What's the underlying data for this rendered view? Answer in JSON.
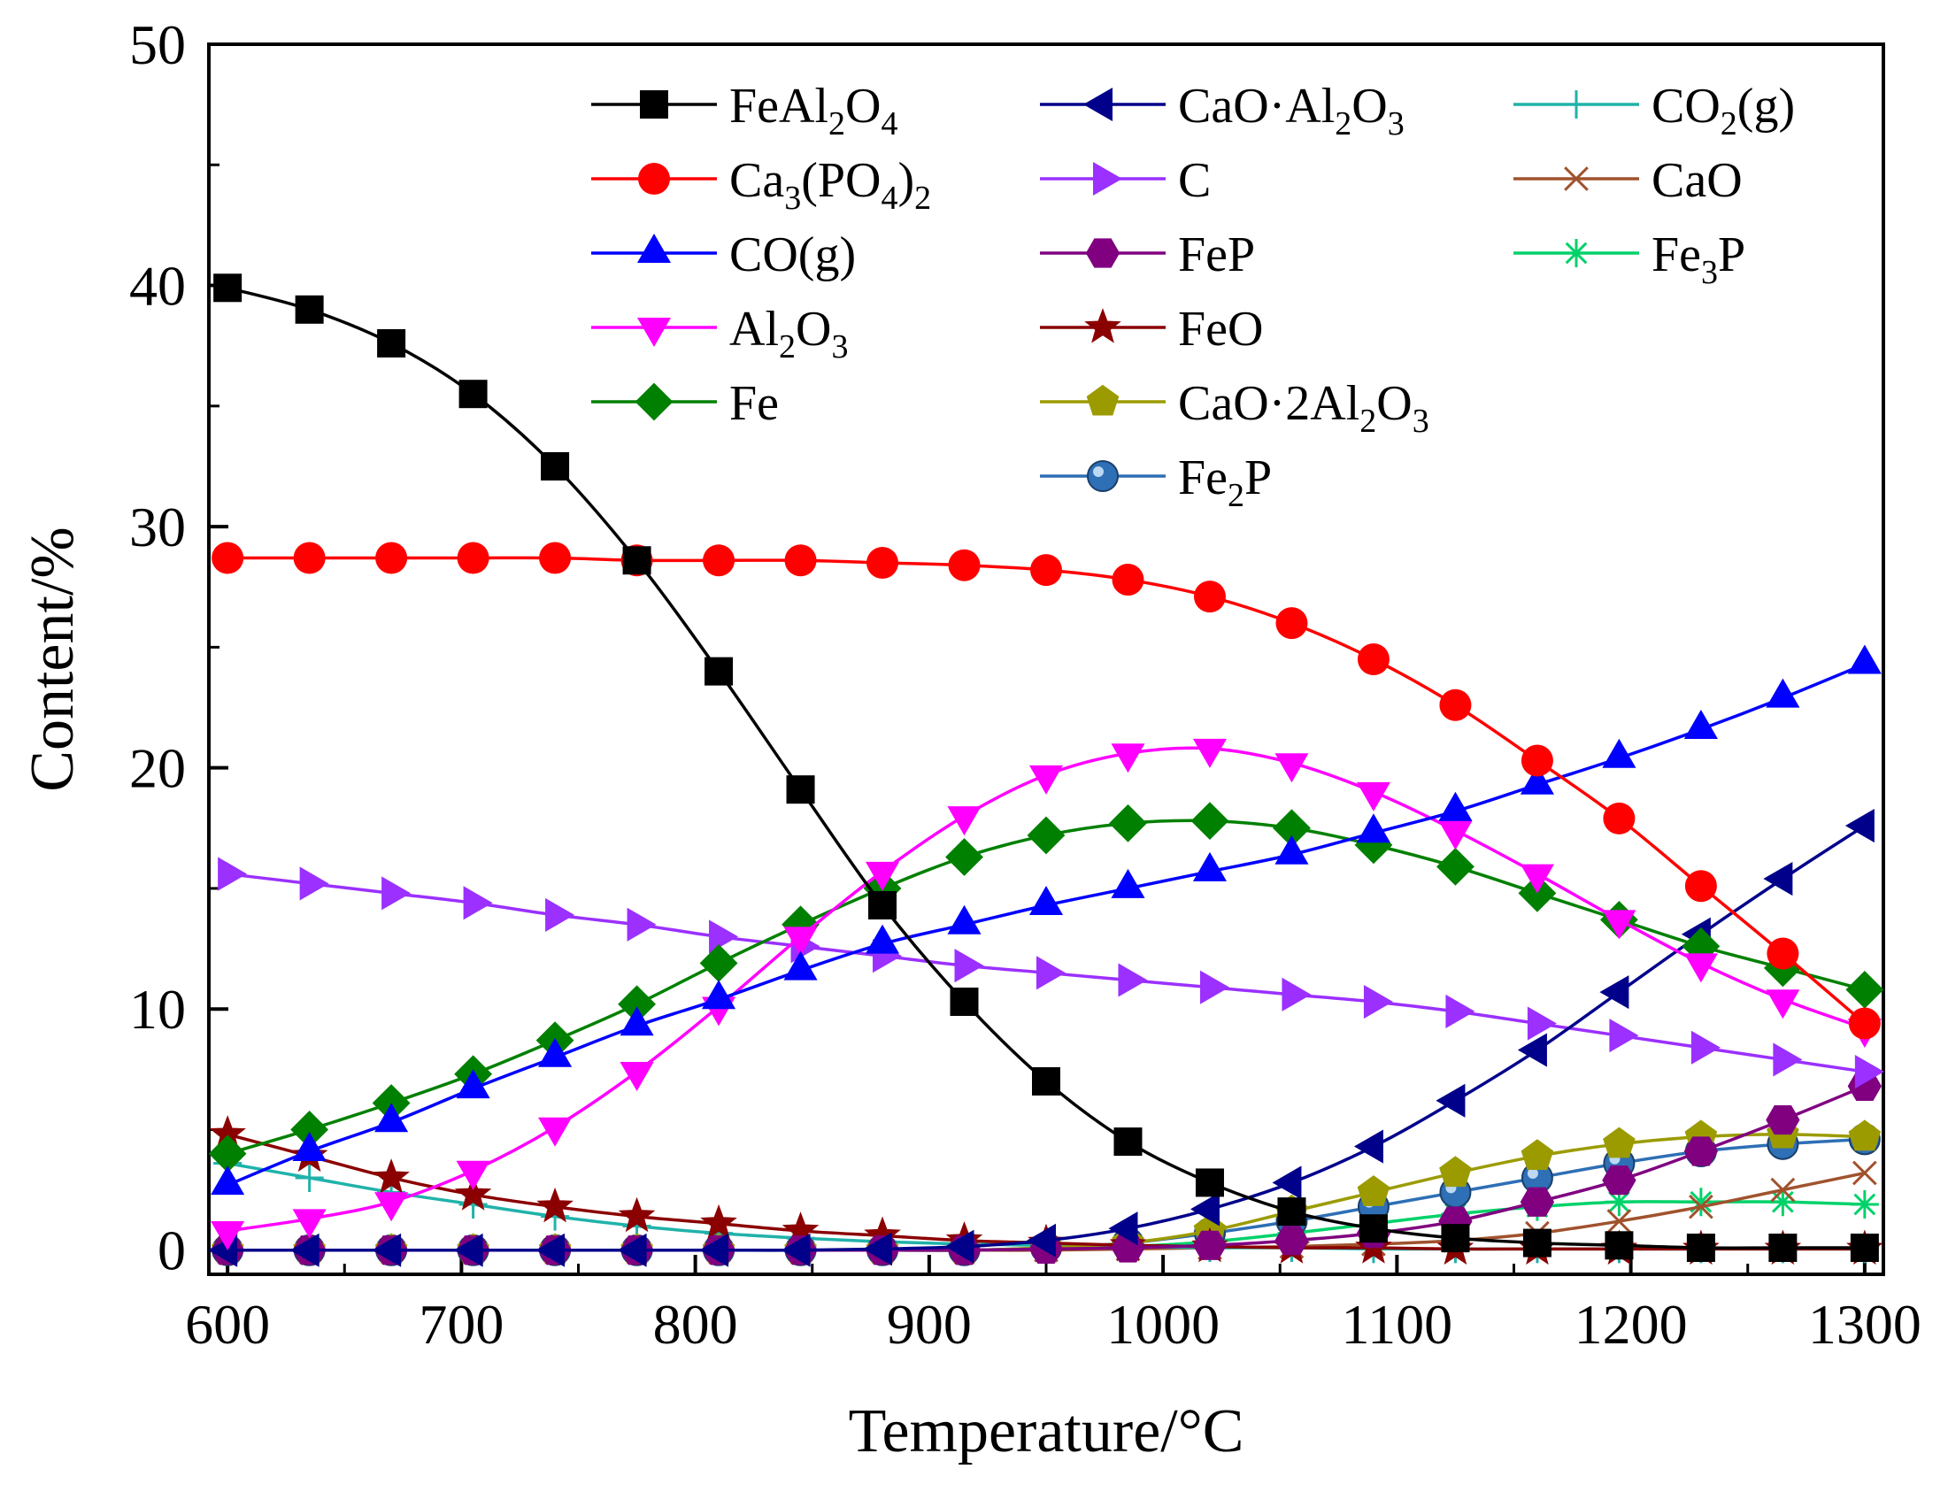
{
  "chart_data": {
    "type": "line",
    "xlabel": "Temperature/°C",
    "ylabel": "Content/%",
    "xlim": [
      592,
      1308
    ],
    "ylim": [
      -1,
      50
    ],
    "xticks": [
      600,
      700,
      800,
      900,
      1000,
      1100,
      1200,
      1300
    ],
    "yticks": [
      0,
      10,
      20,
      30,
      40,
      50
    ],
    "legend_position": "top-right",
    "x": [
      600,
      635,
      670,
      705,
      740,
      775,
      810,
      845,
      880,
      915,
      950,
      985,
      1020,
      1055,
      1090,
      1125,
      1160,
      1195,
      1230,
      1265,
      1300
    ],
    "series": [
      {
        "name": "FeAl2O4",
        "label": [
          [
            "FeAl",
            ""
          ],
          [
            "2",
            "sub"
          ],
          [
            "O",
            ""
          ],
          [
            "4",
            "sub"
          ]
        ],
        "color": "#000000",
        "marker": "square",
        "values": [
          39.9,
          39.0,
          37.6,
          35.5,
          32.5,
          28.6,
          24.0,
          19.1,
          14.3,
          10.3,
          7.0,
          4.5,
          2.8,
          1.6,
          0.9,
          0.5,
          0.3,
          0.2,
          0.1,
          0.1,
          0.1
        ]
      },
      {
        "name": "Ca3(PO4)2",
        "label": [
          [
            "Ca",
            ""
          ],
          [
            "3",
            "sub"
          ],
          [
            "(PO",
            ""
          ],
          [
            "4",
            "sub"
          ],
          [
            ")",
            ""
          ],
          [
            "2",
            "sub"
          ]
        ],
        "color": "#ff0000",
        "marker": "circle",
        "values": [
          28.7,
          28.7,
          28.7,
          28.7,
          28.7,
          28.6,
          28.6,
          28.6,
          28.5,
          28.4,
          28.2,
          27.8,
          27.1,
          26.0,
          24.5,
          22.6,
          20.3,
          17.9,
          15.1,
          12.3,
          9.4
        ]
      },
      {
        "name": "CO(g)",
        "label": [
          [
            "CO(g)",
            ""
          ]
        ],
        "color": "#0000ff",
        "marker": "triangle-up",
        "values": [
          2.7,
          4.1,
          5.3,
          6.7,
          8.0,
          9.3,
          10.4,
          11.6,
          12.7,
          13.5,
          14.3,
          15.0,
          15.7,
          16.4,
          17.3,
          18.2,
          19.3,
          20.4,
          21.6,
          22.9,
          24.3
        ]
      },
      {
        "name": "Al2O3",
        "label": [
          [
            "Al",
            ""
          ],
          [
            "2",
            "sub"
          ],
          [
            "O",
            ""
          ],
          [
            "3",
            "sub"
          ]
        ],
        "color": "#ff00ff",
        "marker": "triangle-down",
        "values": [
          0.8,
          1.3,
          2.0,
          3.3,
          5.1,
          7.4,
          10.1,
          13.0,
          15.7,
          18.0,
          19.7,
          20.6,
          20.8,
          20.2,
          19.0,
          17.4,
          15.6,
          13.7,
          11.9,
          10.4,
          9.2
        ]
      },
      {
        "name": "Fe",
        "label": [
          [
            "Fe",
            ""
          ]
        ],
        "color": "#008000",
        "marker": "diamond",
        "values": [
          4.0,
          5.0,
          6.1,
          7.3,
          8.7,
          10.2,
          11.9,
          13.5,
          15.0,
          16.3,
          17.2,
          17.7,
          17.8,
          17.5,
          16.8,
          15.9,
          14.8,
          13.7,
          12.6,
          11.7,
          10.8
        ]
      },
      {
        "name": "CaO·Al2O3",
        "label": [
          [
            "CaO·Al",
            ""
          ],
          [
            "2",
            "sub"
          ],
          [
            "O",
            ""
          ],
          [
            "3",
            "sub"
          ]
        ],
        "color": "#00008b",
        "marker": "triangle-left",
        "values": [
          0,
          0,
          0,
          0,
          0,
          0,
          0,
          0,
          0.05,
          0.15,
          0.4,
          0.9,
          1.7,
          2.8,
          4.3,
          6.2,
          8.3,
          10.7,
          13.1,
          15.4,
          17.6
        ]
      },
      {
        "name": "C",
        "label": [
          [
            "C",
            ""
          ]
        ],
        "color": "#9b30ff",
        "marker": "triangle-right",
        "values": [
          15.6,
          15.2,
          14.8,
          14.4,
          13.9,
          13.5,
          13.0,
          12.6,
          12.2,
          11.8,
          11.5,
          11.2,
          10.9,
          10.6,
          10.3,
          9.9,
          9.4,
          8.9,
          8.4,
          7.9,
          7.4
        ]
      },
      {
        "name": "FeP",
        "label": [
          [
            "FeP",
            ""
          ]
        ],
        "color": "#800080",
        "marker": "hexagon",
        "values": [
          0,
          0,
          0,
          0,
          0,
          0,
          0,
          0,
          0,
          0,
          0.05,
          0.1,
          0.2,
          0.4,
          0.7,
          1.2,
          2.0,
          2.9,
          4.1,
          5.4,
          6.8
        ]
      },
      {
        "name": "FeO",
        "label": [
          [
            "FeO",
            ""
          ]
        ],
        "color": "#8b0000",
        "marker": "star",
        "values": [
          4.8,
          3.9,
          3.0,
          2.3,
          1.8,
          1.4,
          1.1,
          0.8,
          0.6,
          0.4,
          0.3,
          0.2,
          0.15,
          0.1,
          0.1,
          0.05,
          0.05,
          0.05,
          0.05,
          0.05,
          0.05
        ]
      },
      {
        "name": "CaO·2Al2O3",
        "label": [
          [
            "CaO·2Al",
            ""
          ],
          [
            "2",
            "sub"
          ],
          [
            "O",
            ""
          ],
          [
            "3",
            "sub"
          ]
        ],
        "color": "#9b9b00",
        "marker": "pentagon",
        "values": [
          0,
          0,
          0,
          0,
          0,
          0,
          0,
          0,
          0,
          0,
          0.1,
          0.3,
          0.8,
          1.6,
          2.4,
          3.2,
          3.9,
          4.4,
          4.7,
          4.8,
          4.7
        ]
      },
      {
        "name": "Fe2P",
        "label": [
          [
            "Fe",
            ""
          ],
          [
            "2",
            "sub"
          ],
          [
            "P",
            ""
          ]
        ],
        "color": "#2e6fb5",
        "marker": "sphere",
        "values": [
          0,
          0,
          0,
          0,
          0,
          0,
          0,
          0,
          0,
          0,
          0.1,
          0.3,
          0.7,
          1.2,
          1.8,
          2.4,
          3.0,
          3.6,
          4.1,
          4.4,
          4.6
        ]
      },
      {
        "name": "CO2(g)",
        "label": [
          [
            "CO",
            ""
          ],
          [
            "2",
            "sub"
          ],
          [
            "(g)",
            ""
          ]
        ],
        "color": "#20b2aa",
        "marker": "plus",
        "values": [
          3.6,
          3.0,
          2.4,
          1.9,
          1.4,
          1.0,
          0.7,
          0.5,
          0.35,
          0.25,
          0.2,
          0.15,
          0.1,
          0.1,
          0.05,
          0.05,
          0.05,
          0.05,
          0.05,
          0.05,
          0.05
        ]
      },
      {
        "name": "CaO",
        "label": [
          [
            "CaO",
            ""
          ]
        ],
        "color": "#a0522d",
        "marker": "x",
        "values": [
          0,
          0,
          0,
          0,
          0,
          0,
          0,
          0,
          0,
          0,
          0,
          0.05,
          0.1,
          0.15,
          0.25,
          0.4,
          0.7,
          1.2,
          1.8,
          2.5,
          3.2
        ]
      },
      {
        "name": "Fe3P",
        "label": [
          [
            "Fe",
            ""
          ],
          [
            "3",
            "sub"
          ],
          [
            "P",
            ""
          ]
        ],
        "color": "#00d26a",
        "marker": "asterisk",
        "values": [
          0,
          0,
          0,
          0,
          0,
          0,
          0,
          0,
          0,
          0,
          0.05,
          0.15,
          0.35,
          0.7,
          1.1,
          1.5,
          1.8,
          2.0,
          2.0,
          2.0,
          1.9
        ]
      }
    ]
  }
}
